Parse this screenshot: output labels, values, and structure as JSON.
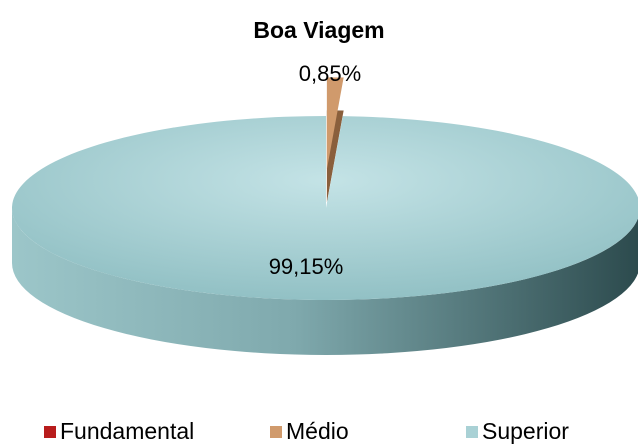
{
  "chart_data": {
    "type": "pie3d",
    "title": "Boa Viagem",
    "categories": [
      "Fundamental",
      "Médio",
      "Superior"
    ],
    "values": [
      0,
      0.85,
      99.15
    ],
    "value_labels": [
      null,
      "0,85%",
      "99,15%"
    ],
    "colors": [
      "#b81c1c",
      "#d09a6c",
      "#a9d1d5"
    ],
    "legend": "bottom"
  }
}
